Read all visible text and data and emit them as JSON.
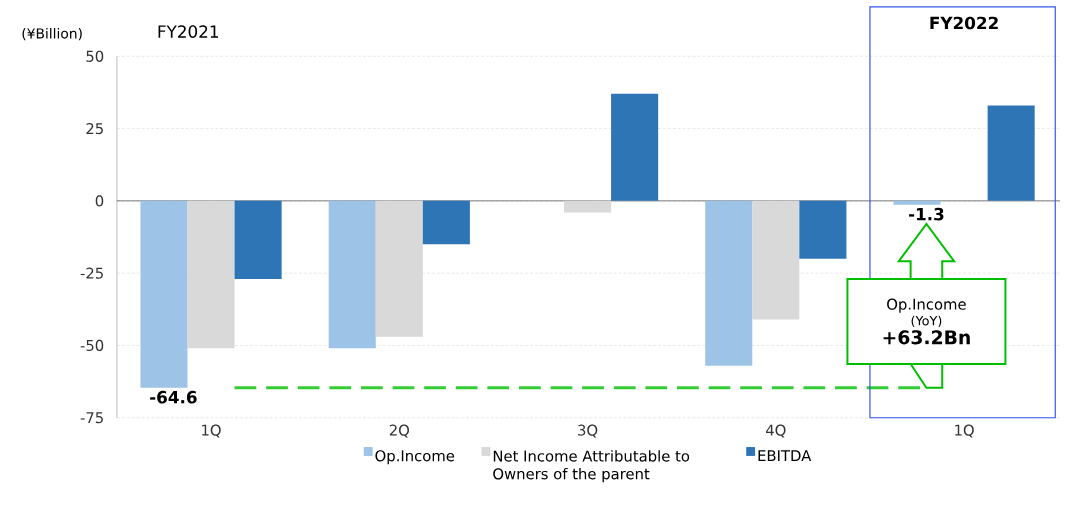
{
  "chart_data": {
    "type": "bar",
    "categories": [
      "1Q",
      "2Q",
      "3Q",
      "4Q",
      "1Q"
    ],
    "series": [
      {
        "name": "Op.Income",
        "color": "#9dc3e6",
        "values": [
          -64.6,
          -51,
          null,
          -57,
          -1.3
        ],
        "value_labels": [
          "-64.6",
          null,
          null,
          null,
          "-1.3"
        ]
      },
      {
        "name": "Net Income Attributable to Owners of the parent",
        "color": "#d9d9d9",
        "values": [
          -51,
          -47,
          -4,
          -41,
          null
        ]
      },
      {
        "name": "EBITDA",
        "color": "#2e75b6",
        "values": [
          -27,
          -15,
          37,
          -20,
          33
        ]
      }
    ],
    "ylim": [
      -75,
      50
    ],
    "yticks": [
      -75,
      -50,
      -25,
      0,
      25,
      50
    ],
    "grid": "y",
    "legend": "bottom",
    "ref_lines": [
      {
        "axis": "y",
        "value": -64.6,
        "color": "#33cc33",
        "line_style": "dashed"
      }
    ],
    "annotations": [
      "(¥Billion)",
      "FY2021",
      "FY2022",
      "Op.Income",
      "(YoY)",
      "+63.2Bn"
    ]
  }
}
